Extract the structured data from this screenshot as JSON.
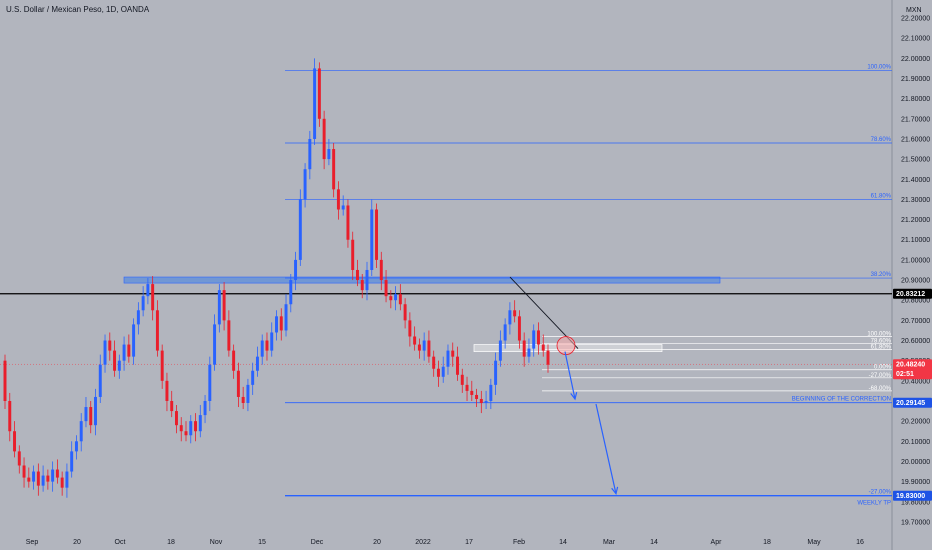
{
  "title": "U.S. Dollar / Mexican Peso, 1D, OANDA",
  "currency": "MXN",
  "colors": {
    "background": "#b2b5be",
    "up": "#2962ff",
    "down": "#e91e2b",
    "fib": "#2962ff",
    "resistance_line": "#000000",
    "zone": "#5b8ddb",
    "price_tag": "#f23645",
    "level_tag": "#1e53e5"
  },
  "chart_data": {
    "type": "candlestick",
    "symbol": "USD/MXN",
    "timeframe": "1D",
    "ylim": [
      19.65,
      22.22
    ],
    "y_ticks": [
      "22.20000",
      "22.10000",
      "22.00000",
      "21.90000",
      "21.80000",
      "21.70000",
      "21.60000",
      "21.50000",
      "21.40000",
      "21.30000",
      "21.20000",
      "21.10000",
      "21.00000",
      "20.90000",
      "20.80000",
      "20.70000",
      "20.60000",
      "20.50000",
      "20.40000",
      "20.30000",
      "20.20000",
      "20.10000",
      "20.00000",
      "19.90000",
      "19.80000",
      "19.70000"
    ],
    "x_ticks": [
      "Sep",
      "20",
      "Oct",
      "18",
      "Nov",
      "15",
      "Dec",
      "20",
      "2022",
      "17",
      "Feb",
      "14",
      "Mar",
      "14",
      "Apr",
      "18",
      "May",
      "16"
    ],
    "candles": [
      [
        20.5,
        20.3
      ],
      [
        20.3,
        20.15
      ],
      [
        20.15,
        20.05
      ],
      [
        20.05,
        19.98
      ],
      [
        19.98,
        19.92
      ],
      [
        19.92,
        19.9
      ],
      [
        19.9,
        19.95
      ],
      [
        19.95,
        19.88
      ],
      [
        19.88,
        19.93
      ],
      [
        19.93,
        19.9
      ],
      [
        19.9,
        19.96
      ],
      [
        19.96,
        19.92
      ],
      [
        19.92,
        19.87
      ],
      [
        19.87,
        19.95
      ],
      [
        19.95,
        20.05
      ],
      [
        20.05,
        20.1
      ],
      [
        20.1,
        20.2
      ],
      [
        20.2,
        20.27
      ],
      [
        20.27,
        20.18
      ],
      [
        20.18,
        20.32
      ],
      [
        20.32,
        20.48
      ],
      [
        20.48,
        20.6
      ],
      [
        20.6,
        20.55
      ],
      [
        20.55,
        20.45
      ],
      [
        20.45,
        20.5
      ],
      [
        20.5,
        20.58
      ],
      [
        20.58,
        20.52
      ],
      [
        20.52,
        20.68
      ],
      [
        20.68,
        20.75
      ],
      [
        20.75,
        20.82
      ],
      [
        20.82,
        20.88
      ],
      [
        20.88,
        20.75
      ],
      [
        20.75,
        20.55
      ],
      [
        20.55,
        20.4
      ],
      [
        20.4,
        20.3
      ],
      [
        20.3,
        20.25
      ],
      [
        20.25,
        20.18
      ],
      [
        20.18,
        20.15
      ],
      [
        20.15,
        20.13
      ],
      [
        20.13,
        20.2
      ],
      [
        20.2,
        20.15
      ],
      [
        20.15,
        20.23
      ],
      [
        20.23,
        20.3
      ],
      [
        20.3,
        20.48
      ],
      [
        20.48,
        20.68
      ],
      [
        20.68,
        20.85
      ],
      [
        20.85,
        20.7
      ],
      [
        20.7,
        20.55
      ],
      [
        20.55,
        20.45
      ],
      [
        20.45,
        20.32
      ],
      [
        20.32,
        20.29
      ],
      [
        20.29,
        20.38
      ],
      [
        20.38,
        20.45
      ],
      [
        20.45,
        20.52
      ],
      [
        20.52,
        20.6
      ],
      [
        20.6,
        20.55
      ],
      [
        20.55,
        20.64
      ],
      [
        20.64,
        20.72
      ],
      [
        20.72,
        20.65
      ],
      [
        20.65,
        20.78
      ],
      [
        20.78,
        20.9
      ],
      [
        20.9,
        21.0
      ],
      [
        21.0,
        21.3
      ],
      [
        21.3,
        21.45
      ],
      [
        21.45,
        21.6
      ],
      [
        21.6,
        21.95
      ],
      [
        21.95,
        21.7
      ],
      [
        21.7,
        21.5
      ],
      [
        21.5,
        21.55
      ],
      [
        21.55,
        21.35
      ],
      [
        21.35,
        21.25
      ],
      [
        21.25,
        21.27
      ],
      [
        21.27,
        21.1
      ],
      [
        21.1,
        20.95
      ],
      [
        20.95,
        20.9
      ],
      [
        20.9,
        20.85
      ],
      [
        20.85,
        20.95
      ],
      [
        20.95,
        21.25
      ],
      [
        21.25,
        21.0
      ],
      [
        21.0,
        20.9
      ],
      [
        20.9,
        20.82
      ],
      [
        20.82,
        20.8
      ],
      [
        20.8,
        20.83
      ],
      [
        20.83,
        20.78
      ],
      [
        20.78,
        20.7
      ],
      [
        20.7,
        20.62
      ],
      [
        20.62,
        20.58
      ],
      [
        20.58,
        20.55
      ],
      [
        20.55,
        20.6
      ],
      [
        20.6,
        20.52
      ],
      [
        20.52,
        20.46
      ],
      [
        20.46,
        20.42
      ],
      [
        20.42,
        20.47
      ],
      [
        20.47,
        20.55
      ],
      [
        20.55,
        20.52
      ],
      [
        20.52,
        20.43
      ],
      [
        20.43,
        20.38
      ],
      [
        20.38,
        20.35
      ],
      [
        20.35,
        20.33
      ],
      [
        20.33,
        20.31
      ],
      [
        20.31,
        20.29
      ],
      [
        20.29,
        20.3
      ],
      [
        20.3,
        20.38
      ],
      [
        20.38,
        20.5
      ],
      [
        20.5,
        20.6
      ],
      [
        20.6,
        20.68
      ],
      [
        20.68,
        20.75
      ],
      [
        20.75,
        20.72
      ],
      [
        20.72,
        20.6
      ],
      [
        20.6,
        20.52
      ],
      [
        20.52,
        20.56
      ],
      [
        20.56,
        20.65
      ],
      [
        20.65,
        20.58
      ],
      [
        20.58,
        20.55
      ],
      [
        20.55,
        20.48
      ]
    ],
    "resistance_line": 20.83212,
    "zone": {
      "from": 20.885,
      "to": 20.915
    },
    "fib_upper": [
      {
        "label": "100.00%",
        "value": 21.94
      },
      {
        "label": "78.60%",
        "value": 21.58
      },
      {
        "label": "61.80%",
        "value": 21.3
      },
      {
        "label": "38.20%",
        "value": 20.91
      }
    ],
    "fib_lower": [
      {
        "label": "100.00%",
        "value": 20.62
      },
      {
        "label": "78.60%",
        "value": 20.585
      },
      {
        "label": "61.80%",
        "value": 20.555
      },
      {
        "label": "0.00%",
        "value": 20.455
      },
      {
        "label": "-27.00%",
        "value": 20.415
      },
      {
        "label": "-68.00%",
        "value": 20.35
      }
    ],
    "trend_line": {
      "from": 20.915,
      "to": 20.56
    },
    "levels": [
      {
        "label": "BEGINNING OF THE CORRECTION",
        "value": 20.29145
      },
      {
        "label": "-27.00%",
        "value": 19.83
      },
      {
        "label": "WEEKLY TP",
        "value": 19.83
      }
    ],
    "price_tags": [
      {
        "value": "20.83212",
        "price": 20.83212,
        "color": "#000000"
      },
      {
        "value": "20.48240",
        "time": "02:51",
        "price": 20.4824,
        "color": "#f23645"
      },
      {
        "value": "20.29145",
        "price": 20.29145,
        "color": "#1e53e5"
      },
      {
        "value": "19.83000",
        "price": 19.83,
        "color": "#1e53e5"
      }
    ]
  }
}
